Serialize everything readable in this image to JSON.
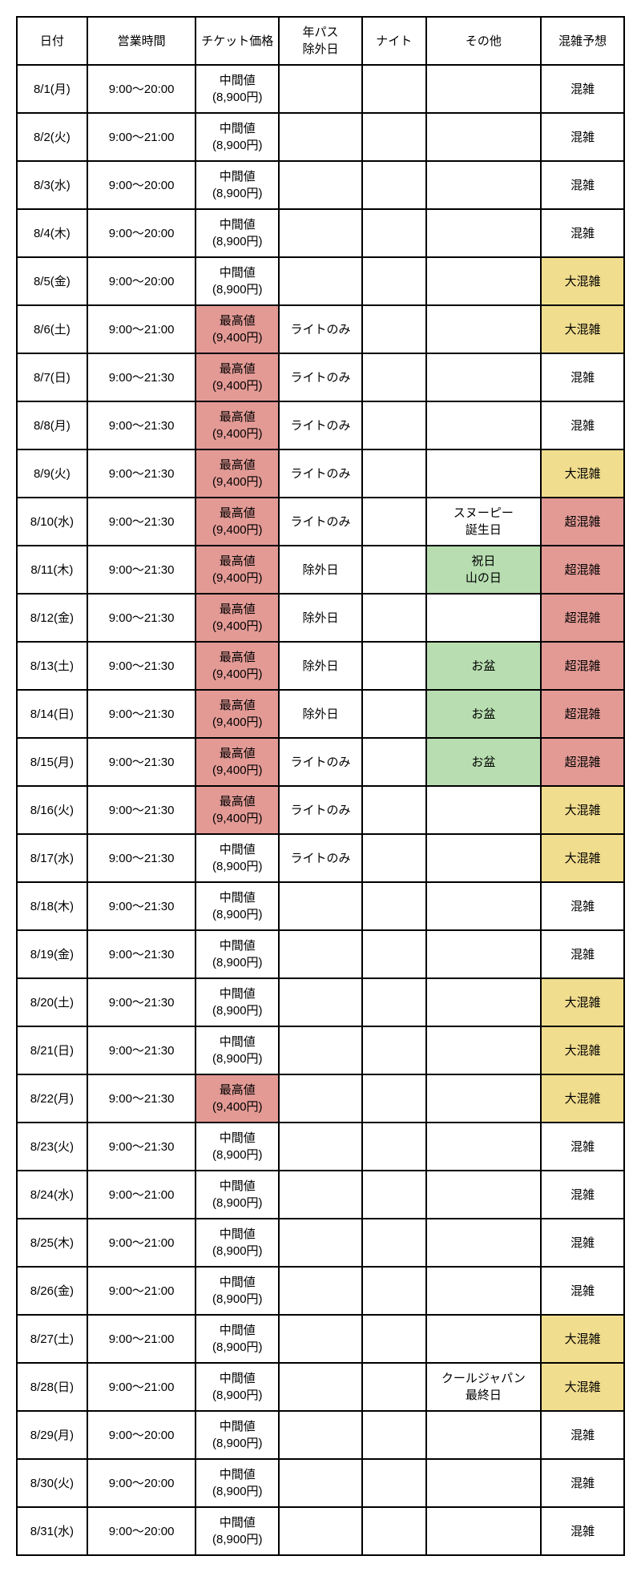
{
  "colors": {
    "ticket_high": "#e39a95",
    "holiday": "#b7ddb0",
    "crowd_very": "#f1dd8e",
    "crowd_extreme": "#e39a95",
    "default_bg": "#ffffff"
  },
  "headers": [
    "日付",
    "営業時間",
    "チケット価格",
    "年パス\n除外日",
    "ナイト",
    "その他",
    "混雑予想"
  ],
  "rows": [
    {
      "date": "8/1(月)",
      "hours": "9:00～20:00",
      "ticket_l1": "中間値",
      "ticket_l2": "(8,900円)",
      "ticket_bg": "default",
      "pass": "",
      "night": "",
      "other_l1": "",
      "other_l2": "",
      "other_bg": "default",
      "crowd": "混雑",
      "crowd_bg": "default"
    },
    {
      "date": "8/2(火)",
      "hours": "9:00～21:00",
      "ticket_l1": "中間値",
      "ticket_l2": "(8,900円)",
      "ticket_bg": "default",
      "pass": "",
      "night": "",
      "other_l1": "",
      "other_l2": "",
      "other_bg": "default",
      "crowd": "混雑",
      "crowd_bg": "default"
    },
    {
      "date": "8/3(水)",
      "hours": "9:00～20:00",
      "ticket_l1": "中間値",
      "ticket_l2": "(8,900円)",
      "ticket_bg": "default",
      "pass": "",
      "night": "",
      "other_l1": "",
      "other_l2": "",
      "other_bg": "default",
      "crowd": "混雑",
      "crowd_bg": "default"
    },
    {
      "date": "8/4(木)",
      "hours": "9:00～20:00",
      "ticket_l1": "中間値",
      "ticket_l2": "(8,900円)",
      "ticket_bg": "default",
      "pass": "",
      "night": "",
      "other_l1": "",
      "other_l2": "",
      "other_bg": "default",
      "crowd": "混雑",
      "crowd_bg": "default"
    },
    {
      "date": "8/5(金)",
      "hours": "9:00～20:00",
      "ticket_l1": "中間値",
      "ticket_l2": "(8,900円)",
      "ticket_bg": "default",
      "pass": "",
      "night": "",
      "other_l1": "",
      "other_l2": "",
      "other_bg": "default",
      "crowd": "大混雑",
      "crowd_bg": "very"
    },
    {
      "date": "8/6(土)",
      "hours": "9:00～21:00",
      "ticket_l1": "最高値",
      "ticket_l2": "(9,400円)",
      "ticket_bg": "high",
      "pass": "ライトのみ",
      "night": "",
      "other_l1": "",
      "other_l2": "",
      "other_bg": "default",
      "crowd": "大混雑",
      "crowd_bg": "very"
    },
    {
      "date": "8/7(日)",
      "hours": "9:00～21:30",
      "ticket_l1": "最高値",
      "ticket_l2": "(9,400円)",
      "ticket_bg": "high",
      "pass": "ライトのみ",
      "night": "",
      "other_l1": "",
      "other_l2": "",
      "other_bg": "default",
      "crowd": "混雑",
      "crowd_bg": "default"
    },
    {
      "date": "8/8(月)",
      "hours": "9:00～21:30",
      "ticket_l1": "最高値",
      "ticket_l2": "(9,400円)",
      "ticket_bg": "high",
      "pass": "ライトのみ",
      "night": "",
      "other_l1": "",
      "other_l2": "",
      "other_bg": "default",
      "crowd": "混雑",
      "crowd_bg": "default"
    },
    {
      "date": "8/9(火)",
      "hours": "9:00～21:30",
      "ticket_l1": "最高値",
      "ticket_l2": "(9,400円)",
      "ticket_bg": "high",
      "pass": "ライトのみ",
      "night": "",
      "other_l1": "",
      "other_l2": "",
      "other_bg": "default",
      "crowd": "大混雑",
      "crowd_bg": "very"
    },
    {
      "date": "8/10(水)",
      "hours": "9:00～21:30",
      "ticket_l1": "最高値",
      "ticket_l2": "(9,400円)",
      "ticket_bg": "high",
      "pass": "ライトのみ",
      "night": "",
      "other_l1": "スヌーピー",
      "other_l2": "誕生日",
      "other_bg": "default",
      "crowd": "超混雑",
      "crowd_bg": "extreme"
    },
    {
      "date": "8/11(木)",
      "hours": "9:00～21:30",
      "ticket_l1": "最高値",
      "ticket_l2": "(9,400円)",
      "ticket_bg": "high",
      "pass": "除外日",
      "night": "",
      "other_l1": "祝日",
      "other_l2": "山の日",
      "other_bg": "holiday",
      "crowd": "超混雑",
      "crowd_bg": "extreme"
    },
    {
      "date": "8/12(金)",
      "hours": "9:00～21:30",
      "ticket_l1": "最高値",
      "ticket_l2": "(9,400円)",
      "ticket_bg": "high",
      "pass": "除外日",
      "night": "",
      "other_l1": "",
      "other_l2": "",
      "other_bg": "default",
      "crowd": "超混雑",
      "crowd_bg": "extreme"
    },
    {
      "date": "8/13(土)",
      "hours": "9:00～21:30",
      "ticket_l1": "最高値",
      "ticket_l2": "(9,400円)",
      "ticket_bg": "high",
      "pass": "除外日",
      "night": "",
      "other_l1": "お盆",
      "other_l2": "",
      "other_bg": "holiday",
      "crowd": "超混雑",
      "crowd_bg": "extreme"
    },
    {
      "date": "8/14(日)",
      "hours": "9:00～21:30",
      "ticket_l1": "最高値",
      "ticket_l2": "(9,400円)",
      "ticket_bg": "high",
      "pass": "除外日",
      "night": "",
      "other_l1": "お盆",
      "other_l2": "",
      "other_bg": "holiday",
      "crowd": "超混雑",
      "crowd_bg": "extreme"
    },
    {
      "date": "8/15(月)",
      "hours": "9:00～21:30",
      "ticket_l1": "最高値",
      "ticket_l2": "(9,400円)",
      "ticket_bg": "high",
      "pass": "ライトのみ",
      "night": "",
      "other_l1": "お盆",
      "other_l2": "",
      "other_bg": "holiday",
      "crowd": "超混雑",
      "crowd_bg": "extreme"
    },
    {
      "date": "8/16(火)",
      "hours": "9:00～21:30",
      "ticket_l1": "最高値",
      "ticket_l2": "(9,400円)",
      "ticket_bg": "high",
      "pass": "ライトのみ",
      "night": "",
      "other_l1": "",
      "other_l2": "",
      "other_bg": "default",
      "crowd": "大混雑",
      "crowd_bg": "very"
    },
    {
      "date": "8/17(水)",
      "hours": "9:00～21:30",
      "ticket_l1": "中間値",
      "ticket_l2": "(8,900円)",
      "ticket_bg": "default",
      "pass": "ライトのみ",
      "night": "",
      "other_l1": "",
      "other_l2": "",
      "other_bg": "default",
      "crowd": "大混雑",
      "crowd_bg": "very"
    },
    {
      "date": "8/18(木)",
      "hours": "9:00～21:30",
      "ticket_l1": "中間値",
      "ticket_l2": "(8,900円)",
      "ticket_bg": "default",
      "pass": "",
      "night": "",
      "other_l1": "",
      "other_l2": "",
      "other_bg": "default",
      "crowd": "混雑",
      "crowd_bg": "default"
    },
    {
      "date": "8/19(金)",
      "hours": "9:00～21:30",
      "ticket_l1": "中間値",
      "ticket_l2": "(8,900円)",
      "ticket_bg": "default",
      "pass": "",
      "night": "",
      "other_l1": "",
      "other_l2": "",
      "other_bg": "default",
      "crowd": "混雑",
      "crowd_bg": "default"
    },
    {
      "date": "8/20(土)",
      "hours": "9:00～21:30",
      "ticket_l1": "中間値",
      "ticket_l2": "(8,900円)",
      "ticket_bg": "default",
      "pass": "",
      "night": "",
      "other_l1": "",
      "other_l2": "",
      "other_bg": "default",
      "crowd": "大混雑",
      "crowd_bg": "very"
    },
    {
      "date": "8/21(日)",
      "hours": "9:00～21:30",
      "ticket_l1": "中間値",
      "ticket_l2": "(8,900円)",
      "ticket_bg": "default",
      "pass": "",
      "night": "",
      "other_l1": "",
      "other_l2": "",
      "other_bg": "default",
      "crowd": "大混雑",
      "crowd_bg": "very"
    },
    {
      "date": "8/22(月)",
      "hours": "9:00～21:30",
      "ticket_l1": "最高値",
      "ticket_l2": "(9,400円)",
      "ticket_bg": "high",
      "pass": "",
      "night": "",
      "other_l1": "",
      "other_l2": "",
      "other_bg": "default",
      "crowd": "大混雑",
      "crowd_bg": "very"
    },
    {
      "date": "8/23(火)",
      "hours": "9:00～21:30",
      "ticket_l1": "中間値",
      "ticket_l2": "(8,900円)",
      "ticket_bg": "default",
      "pass": "",
      "night": "",
      "other_l1": "",
      "other_l2": "",
      "other_bg": "default",
      "crowd": "混雑",
      "crowd_bg": "default"
    },
    {
      "date": "8/24(水)",
      "hours": "9:00～21:00",
      "ticket_l1": "中間値",
      "ticket_l2": "(8,900円)",
      "ticket_bg": "default",
      "pass": "",
      "night": "",
      "other_l1": "",
      "other_l2": "",
      "other_bg": "default",
      "crowd": "混雑",
      "crowd_bg": "default"
    },
    {
      "date": "8/25(木)",
      "hours": "9:00～21:00",
      "ticket_l1": "中間値",
      "ticket_l2": "(8,900円)",
      "ticket_bg": "default",
      "pass": "",
      "night": "",
      "other_l1": "",
      "other_l2": "",
      "other_bg": "default",
      "crowd": "混雑",
      "crowd_bg": "default"
    },
    {
      "date": "8/26(金)",
      "hours": "9:00～21:00",
      "ticket_l1": "中間値",
      "ticket_l2": "(8,900円)",
      "ticket_bg": "default",
      "pass": "",
      "night": "",
      "other_l1": "",
      "other_l2": "",
      "other_bg": "default",
      "crowd": "混雑",
      "crowd_bg": "default"
    },
    {
      "date": "8/27(土)",
      "hours": "9:00～21:00",
      "ticket_l1": "中間値",
      "ticket_l2": "(8,900円)",
      "ticket_bg": "default",
      "pass": "",
      "night": "",
      "other_l1": "",
      "other_l2": "",
      "other_bg": "default",
      "crowd": "大混雑",
      "crowd_bg": "very"
    },
    {
      "date": "8/28(日)",
      "hours": "9:00～21:00",
      "ticket_l1": "中間値",
      "ticket_l2": "(8,900円)",
      "ticket_bg": "default",
      "pass": "",
      "night": "",
      "other_l1": "クールジャパン",
      "other_l2": "最終日",
      "other_bg": "default",
      "crowd": "大混雑",
      "crowd_bg": "very"
    },
    {
      "date": "8/29(月)",
      "hours": "9:00～20:00",
      "ticket_l1": "中間値",
      "ticket_l2": "(8,900円)",
      "ticket_bg": "default",
      "pass": "",
      "night": "",
      "other_l1": "",
      "other_l2": "",
      "other_bg": "default",
      "crowd": "混雑",
      "crowd_bg": "default"
    },
    {
      "date": "8/30(火)",
      "hours": "9:00～20:00",
      "ticket_l1": "中間値",
      "ticket_l2": "(8,900円)",
      "ticket_bg": "default",
      "pass": "",
      "night": "",
      "other_l1": "",
      "other_l2": "",
      "other_bg": "default",
      "crowd": "混雑",
      "crowd_bg": "default"
    },
    {
      "date": "8/31(水)",
      "hours": "9:00～20:00",
      "ticket_l1": "中間値",
      "ticket_l2": "(8,900円)",
      "ticket_bg": "default",
      "pass": "",
      "night": "",
      "other_l1": "",
      "other_l2": "",
      "other_bg": "default",
      "crowd": "混雑",
      "crowd_bg": "default"
    }
  ]
}
